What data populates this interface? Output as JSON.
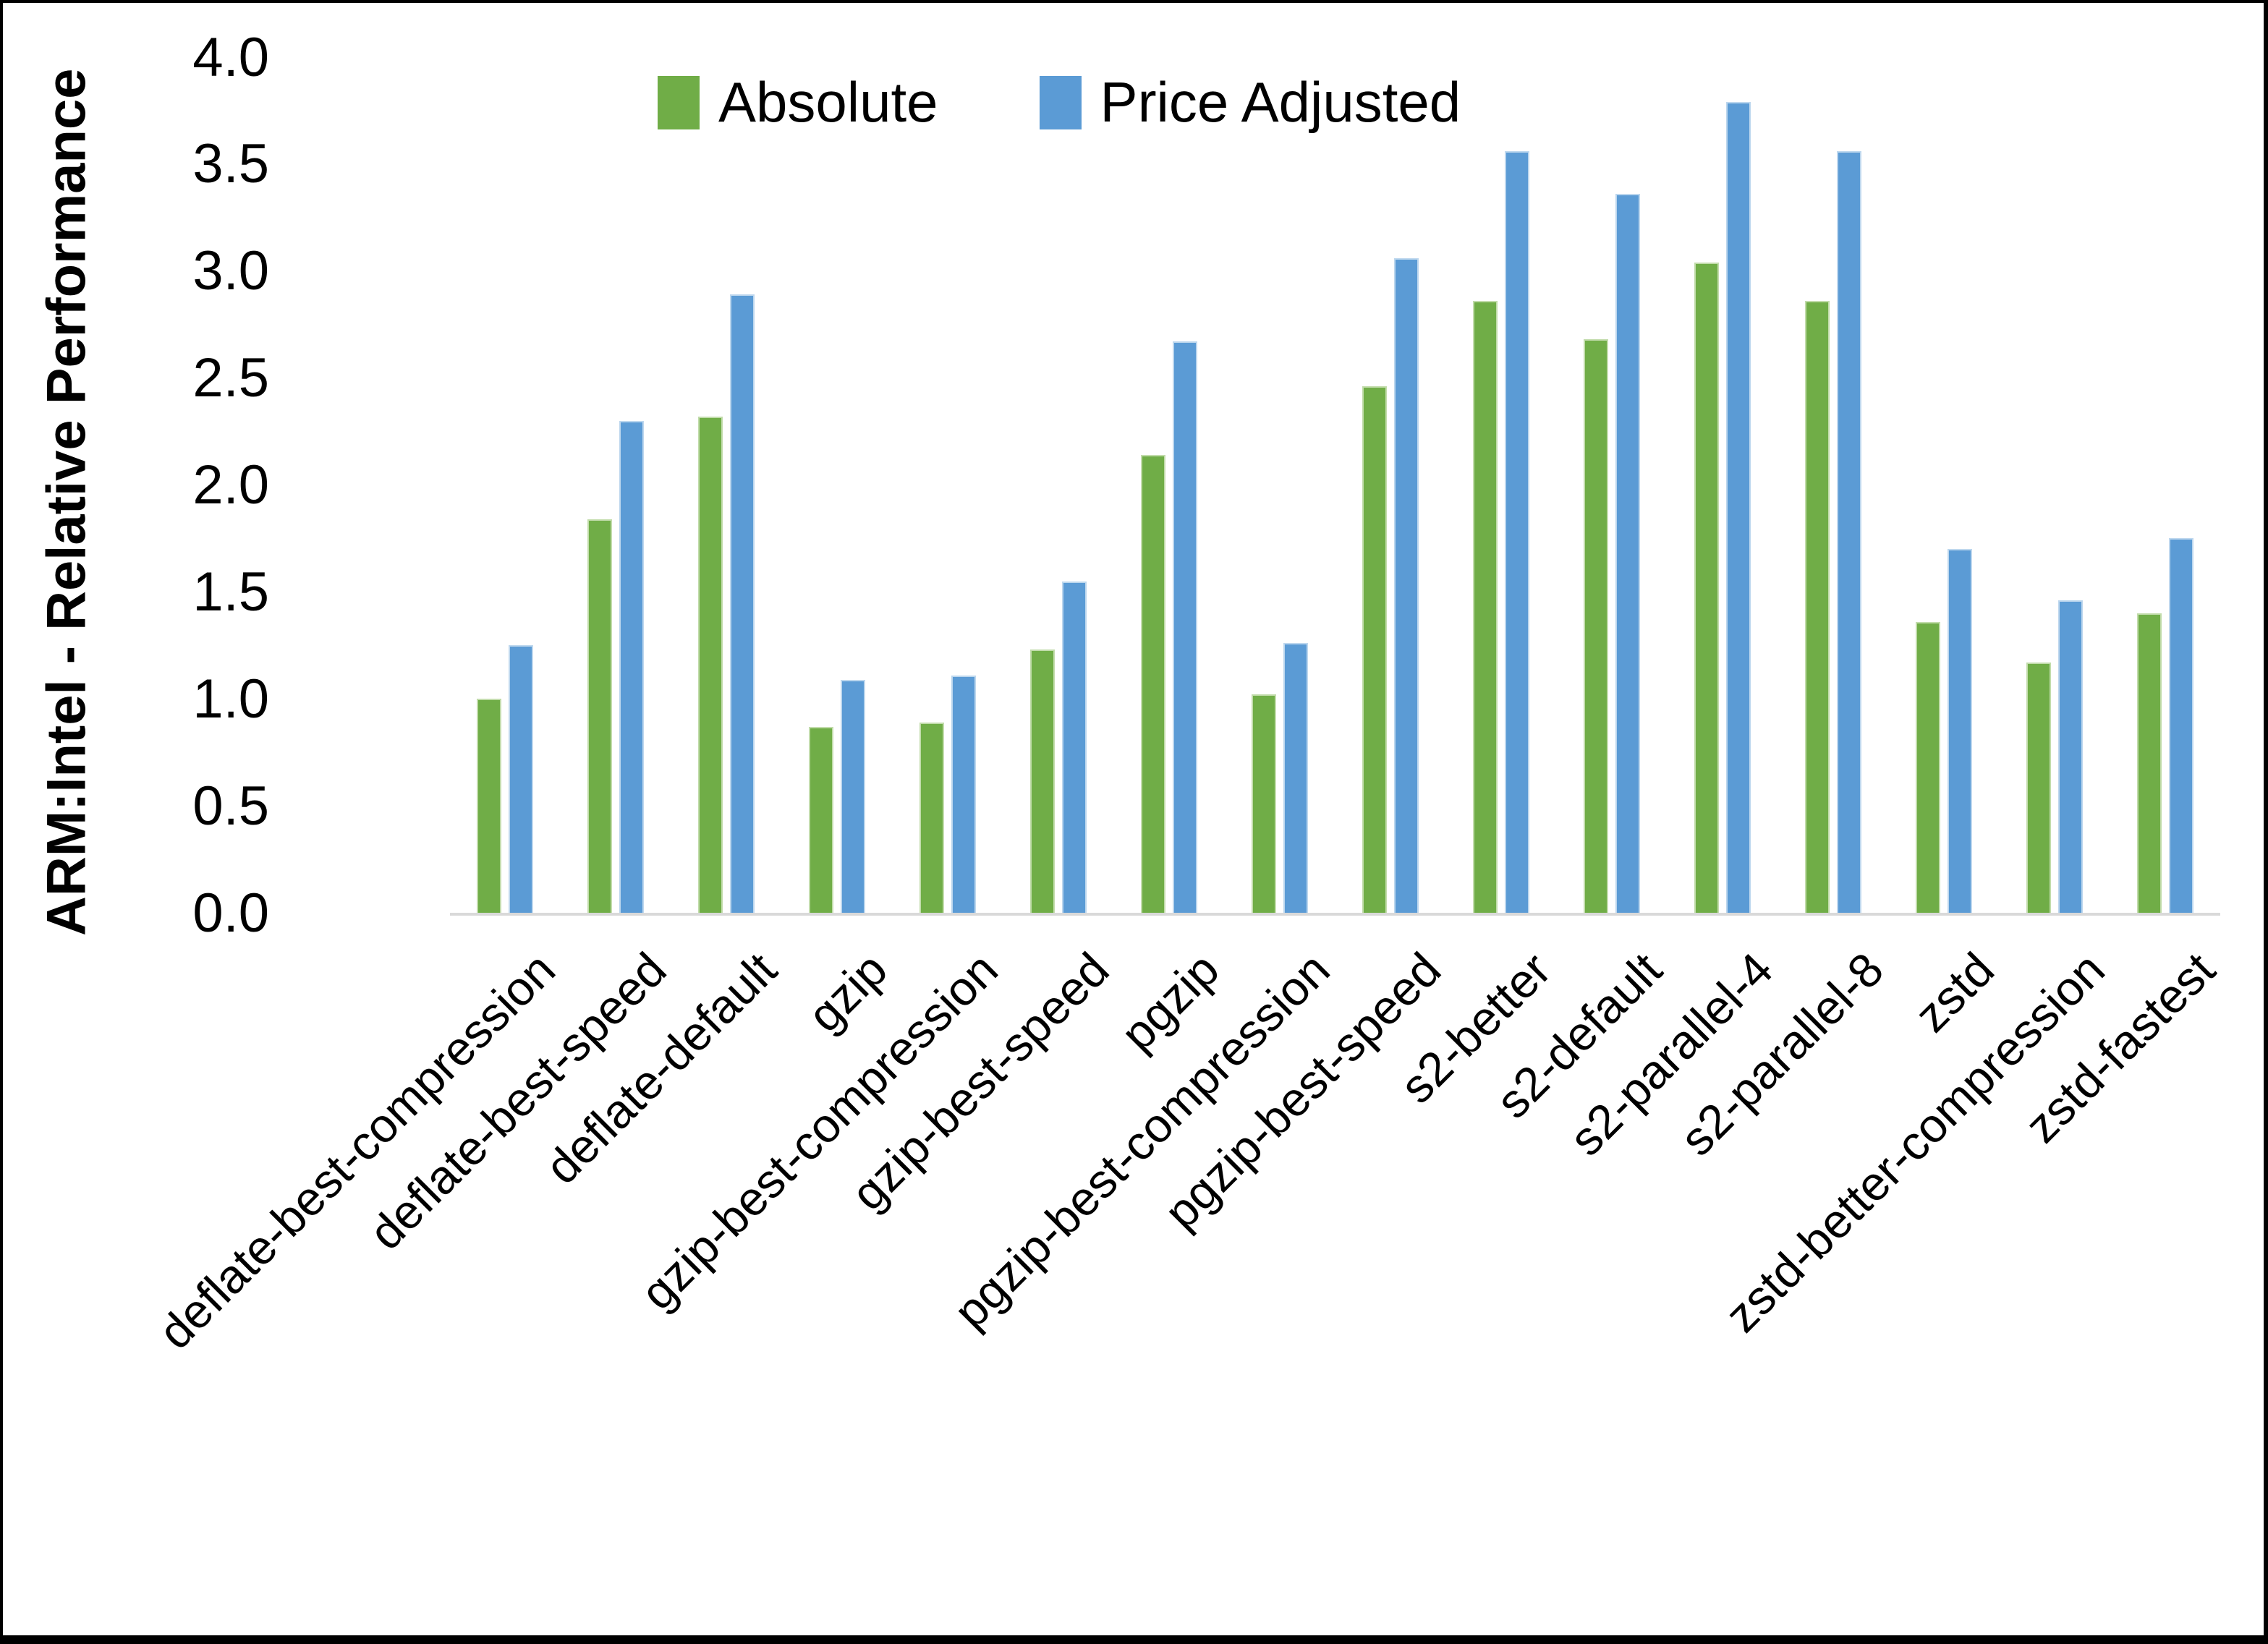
{
  "frame": {
    "background": "#ffffff",
    "border_color": "#000000"
  },
  "chart_data": {
    "type": "bar",
    "title": "",
    "xlabel": "",
    "ylabel": "ARM:Intel - Relative Performance",
    "ylim": [
      0,
      4.0
    ],
    "ytick_step": 0.5,
    "yticks": [
      "4.0",
      "3.5",
      "3.0",
      "2.5",
      "2.0",
      "1.5",
      "1.0",
      "0.5",
      "0.0"
    ],
    "grid": "off",
    "legend_position": "top-center",
    "axis_line_color": "#d9d9d9",
    "categories": [
      "deflate-best-compression",
      "deflate-best-speed",
      "deflate-default",
      "gzip",
      "gzip-best-compression",
      "gzip-best-speed",
      "pgzip",
      "pgzip-best-compression",
      "pgzip-best-speed",
      "s2-better",
      "s2-default",
      "s2-parallel-4",
      "s2-parallel-8",
      "zstd",
      "zstd-better-compression",
      "zstd-fastest"
    ],
    "series": [
      {
        "name": "Absolute",
        "color": "#70AD47",
        "values": [
          1.0,
          1.84,
          2.32,
          0.87,
          0.89,
          1.23,
          2.14,
          1.02,
          2.46,
          2.86,
          2.68,
          3.04,
          2.86,
          1.36,
          1.17,
          1.4
        ]
      },
      {
        "name": "Price Adjusted",
        "color": "#5B9BD5",
        "values": [
          1.25,
          2.3,
          2.89,
          1.09,
          1.11,
          1.55,
          2.67,
          1.26,
          3.06,
          3.56,
          3.36,
          3.79,
          3.56,
          1.7,
          1.46,
          1.75
        ]
      }
    ]
  }
}
